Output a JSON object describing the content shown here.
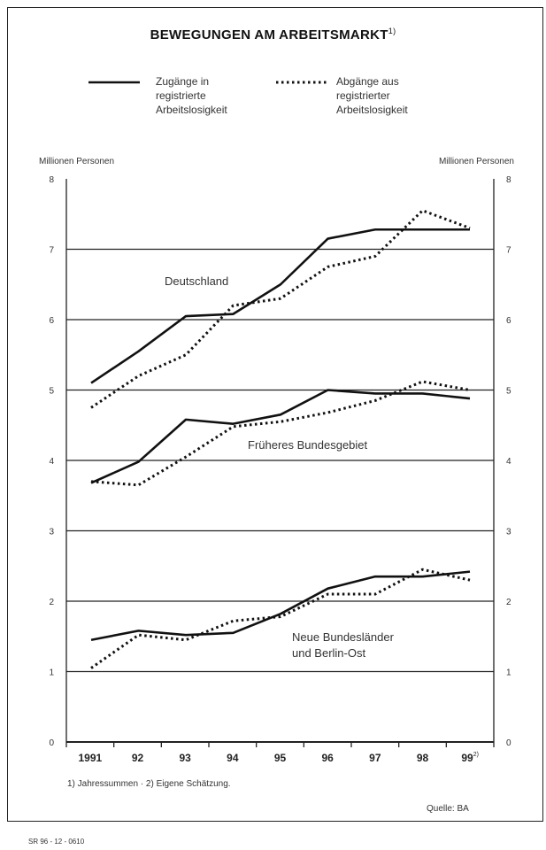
{
  "chart_data": {
    "type": "line",
    "title": "BEWEGUNGEN AM ARBEITSMARKT",
    "title_footnote": "1)",
    "ylabel_left": "Millionen Personen",
    "ylabel_right": "Millionen Personen",
    "ylim": [
      0,
      8
    ],
    "yticks": [
      "0",
      "1",
      "2",
      "3",
      "4",
      "5",
      "6",
      "7",
      "8"
    ],
    "categories": [
      "1991",
      "92",
      "93",
      "94",
      "95",
      "96",
      "97",
      "98",
      "99"
    ],
    "last_category_footnote": "2)",
    "grid": "horizontal",
    "legend_position": "top",
    "legend": [
      {
        "style": "solid",
        "label_lines": [
          "Zugänge in",
          "registrierte",
          "Arbeitslosigkeit"
        ]
      },
      {
        "style": "dotted",
        "label_lines": [
          "Abgänge aus",
          "registrierter",
          "Arbeitslosigkeit"
        ]
      }
    ],
    "groups": [
      {
        "name": "Deutschland",
        "series": [
          {
            "style": "solid",
            "values": [
              5.1,
              5.55,
              6.05,
              6.08,
              6.5,
              7.15,
              7.28,
              7.28,
              7.28
            ]
          },
          {
            "style": "dotted",
            "values": [
              4.75,
              5.2,
              5.5,
              6.2,
              6.3,
              6.75,
              6.9,
              7.55,
              7.3
            ]
          }
        ]
      },
      {
        "name": "Früheres Bundesgebiet",
        "series": [
          {
            "style": "solid",
            "values": [
              3.68,
              3.98,
              4.58,
              4.52,
              4.65,
              5.0,
              4.95,
              4.95,
              4.88
            ]
          },
          {
            "style": "dotted",
            "values": [
              3.7,
              3.65,
              4.05,
              4.48,
              4.55,
              4.68,
              4.85,
              5.12,
              5.0
            ]
          }
        ]
      },
      {
        "name_lines": [
          "Neue Bundesländer",
          "und Berlin-Ost"
        ],
        "series": [
          {
            "style": "solid",
            "values": [
              1.45,
              1.58,
              1.52,
              1.55,
              1.82,
              2.18,
              2.35,
              2.35,
              2.42
            ]
          },
          {
            "style": "dotted",
            "values": [
              1.05,
              1.52,
              1.45,
              1.72,
              1.78,
              2.1,
              2.1,
              2.45,
              2.3
            ]
          }
        ]
      }
    ]
  },
  "footnote": "1) Jahressummen · 2) Eigene Schätzung.",
  "source": "Quelle: BA",
  "code": "SR 96 - 12 - 0610",
  "colors": {
    "line": "#111111",
    "grid": "#222222",
    "frame": "#222222"
  }
}
